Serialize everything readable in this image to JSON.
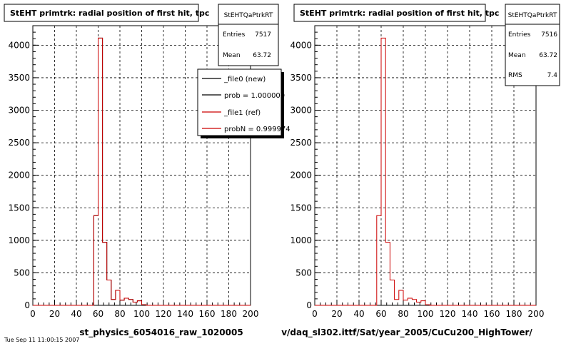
{
  "footer_text": "Tue Sep 11 11:00:15 2007",
  "panels": [
    {
      "title": "StEHT primtrk: radial position of first hit, tpc",
      "xlabel": "st_physics_6054016_raw_1020005",
      "stats": {
        "name": "StEHTQaPtrkRT",
        "rows": [
          {
            "label": "Entries",
            "value": "7517"
          },
          {
            "label": "Mean",
            "value": "63.72"
          }
        ]
      },
      "legend": [
        {
          "label": "_file0 (new)",
          "color": "#000000"
        },
        {
          "label": "prob = 1.000000",
          "color": "#000000"
        },
        {
          "label": "_file1 (ref)",
          "color": "#cc0000"
        },
        {
          "label": "probN = 0.999974",
          "color": "#cc0000"
        }
      ]
    },
    {
      "title": "StEHT primtrk: radial position of first hit, tpc",
      "xlabel": "v/daq_sl302.ittf/Sat/year_2005/CuCu200_HighTower/",
      "stats": {
        "name": "StEHTQaPtrkRT",
        "rows": [
          {
            "label": "Entries",
            "value": "7516"
          },
          {
            "label": "Mean",
            "value": "63.72"
          },
          {
            "label": "RMS",
            "value": "7.4"
          }
        ]
      },
      "legend": []
    }
  ],
  "chart_data": [
    {
      "type": "histogram",
      "title": "StEHT primtrk: radial position of first hit, tpc",
      "xlabel": "st_physics_6054016_raw_1020005",
      "ylabel": "",
      "xlim": [
        0,
        200
      ],
      "ylim": [
        0,
        4300
      ],
      "xticks": [
        0,
        20,
        40,
        60,
        80,
        100,
        120,
        140,
        160,
        180,
        200
      ],
      "yticks": [
        0,
        500,
        1000,
        1500,
        2000,
        2500,
        3000,
        3500,
        4000
      ],
      "grid": true,
      "bin_width": 4,
      "series": [
        {
          "name": "_file0 (new)",
          "color": "#000000",
          "bin_edges_start": 56,
          "values": [
            1380,
            4110,
            970,
            390,
            90,
            230,
            80,
            110,
            90,
            50,
            70,
            10
          ]
        },
        {
          "name": "_file1 (ref)",
          "color": "#cc0000",
          "bin_edges_start": 56,
          "values": [
            1380,
            4110,
            970,
            390,
            90,
            230,
            80,
            110,
            90,
            50,
            70,
            10
          ]
        }
      ]
    },
    {
      "type": "histogram",
      "title": "StEHT primtrk: radial position of first hit, tpc",
      "xlabel": "v/daq_sl302.ittf/Sat/year_2005/CuCu200_HighTower/",
      "ylabel": "",
      "xlim": [
        0,
        200
      ],
      "ylim": [
        0,
        4300
      ],
      "xticks": [
        0,
        20,
        40,
        60,
        80,
        100,
        120,
        140,
        160,
        180,
        200
      ],
      "yticks": [
        0,
        500,
        1000,
        1500,
        2000,
        2500,
        3000,
        3500,
        4000
      ],
      "grid": true,
      "bin_width": 4,
      "series": [
        {
          "name": "",
          "color": "#cc0000",
          "bin_edges_start": 56,
          "values": [
            1380,
            4110,
            970,
            390,
            90,
            230,
            80,
            110,
            90,
            50,
            70,
            10
          ]
        }
      ]
    }
  ]
}
